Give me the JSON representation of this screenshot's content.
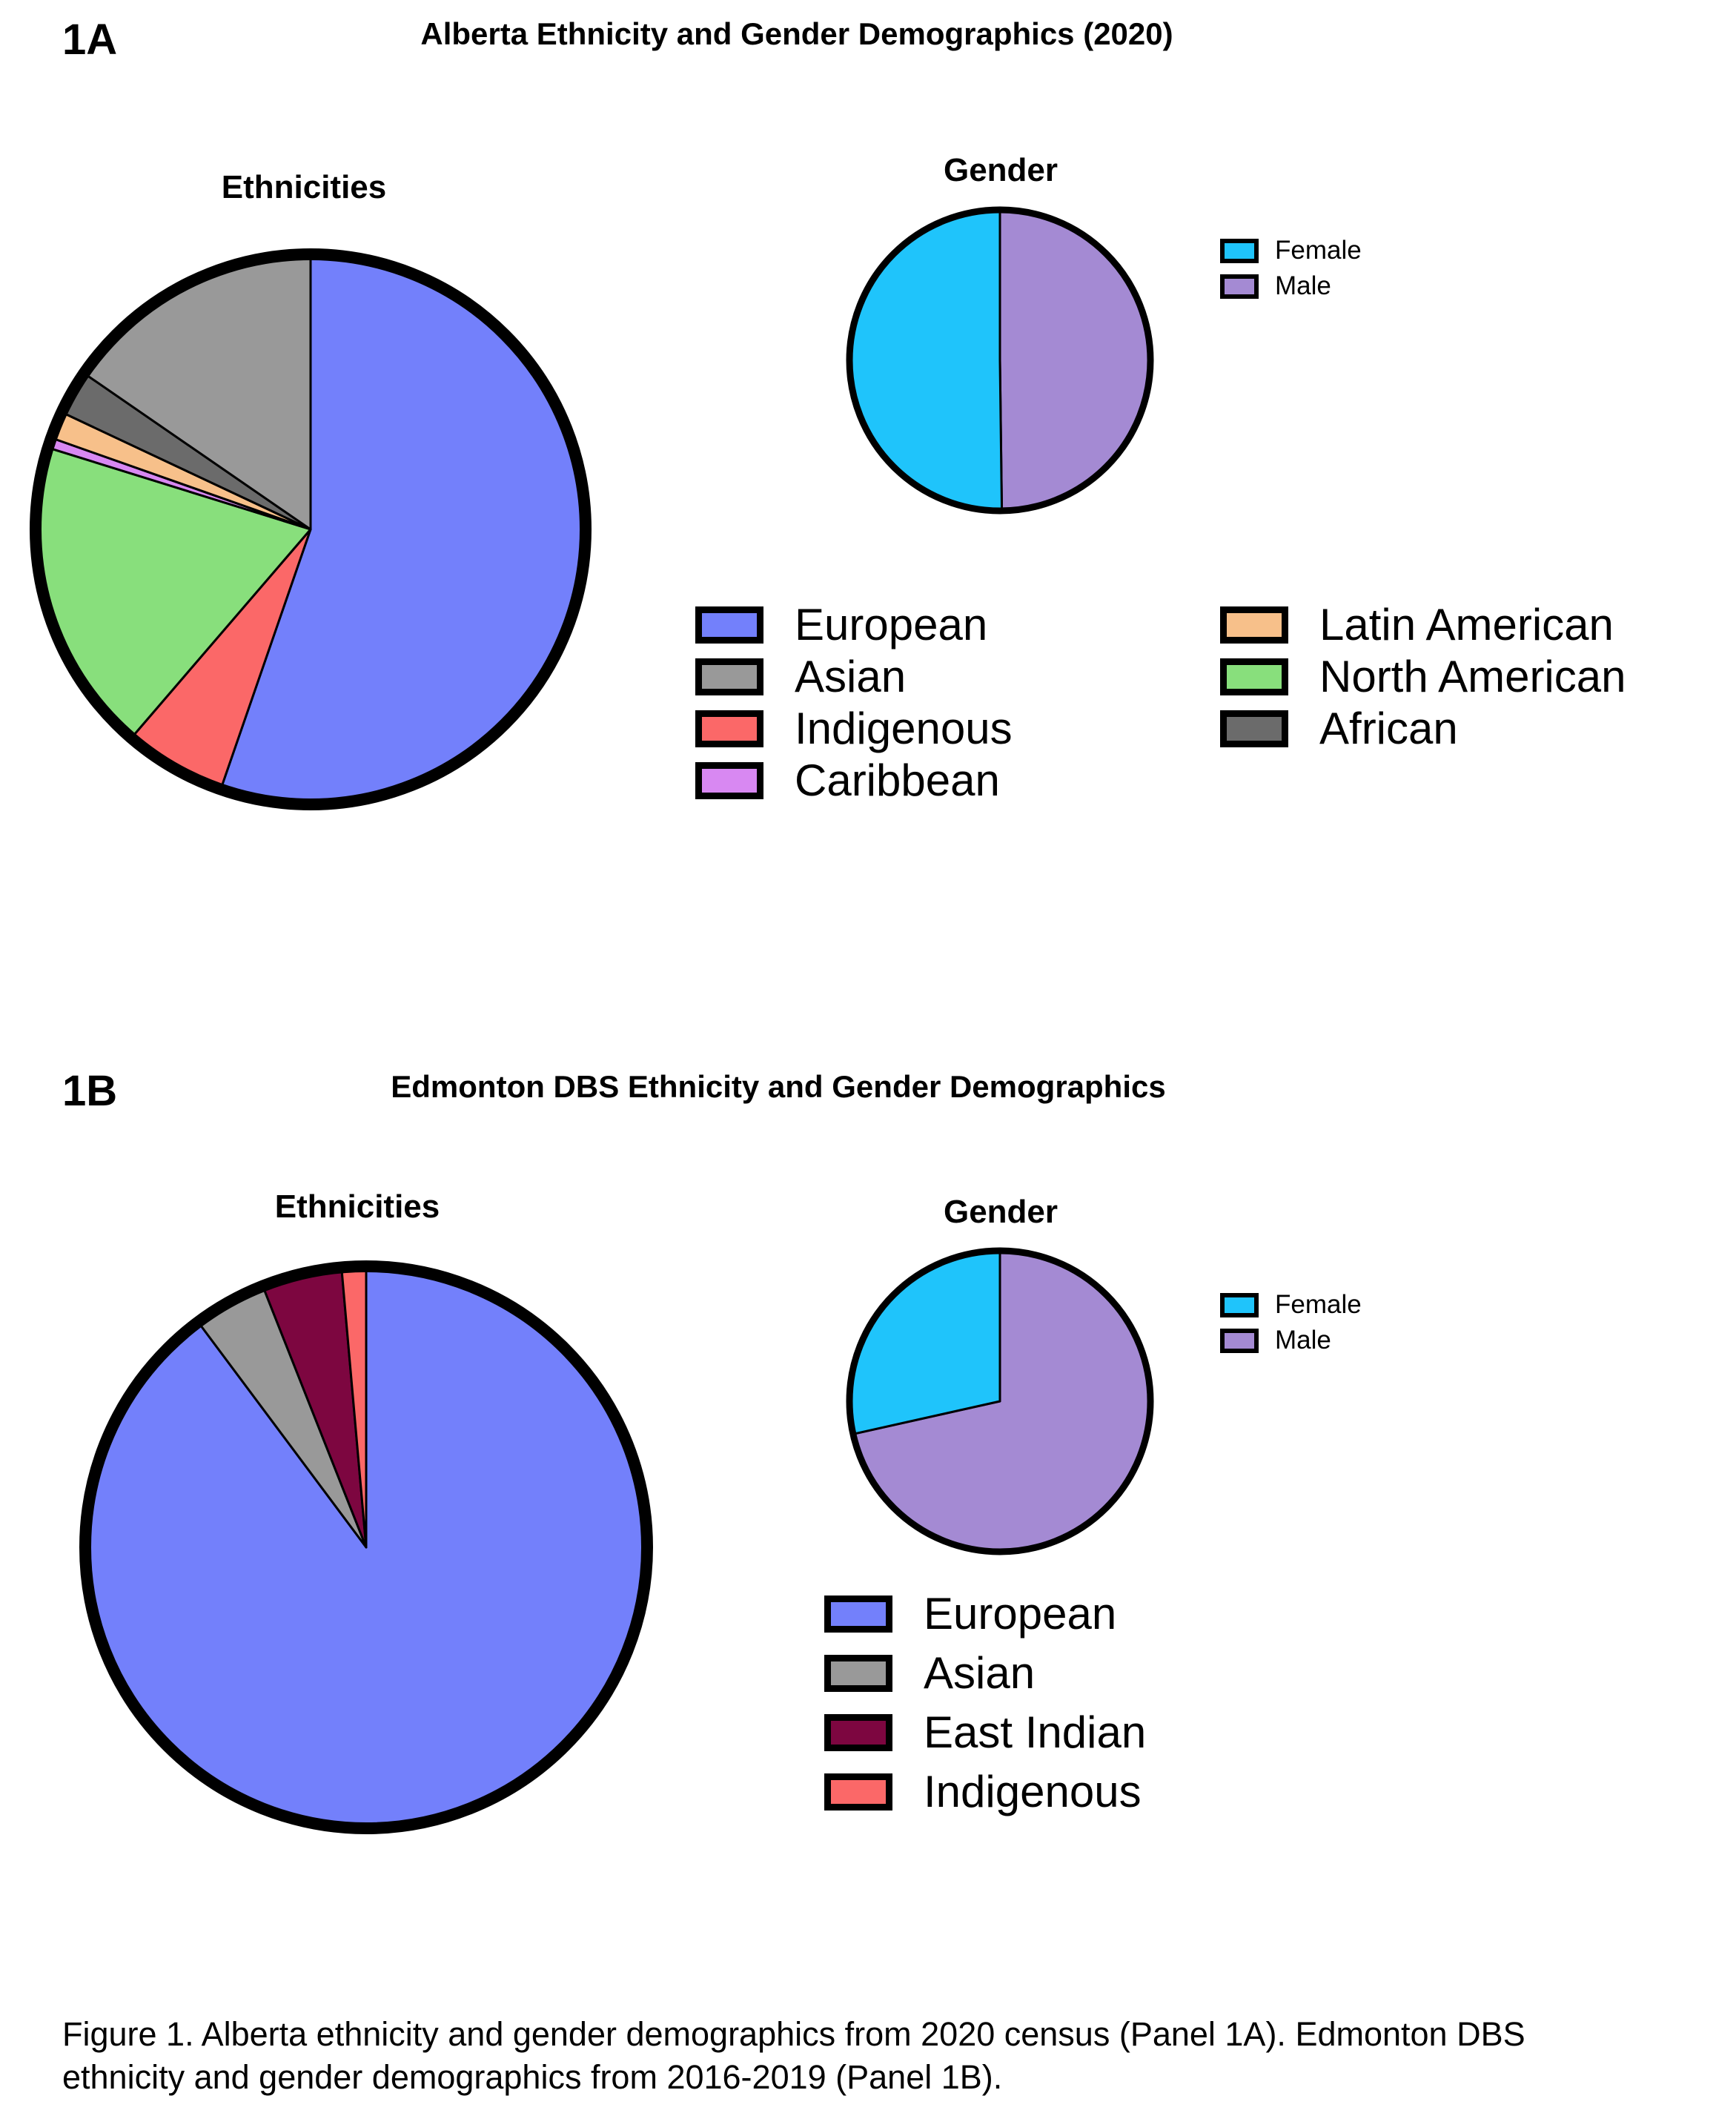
{
  "panel_1a": {
    "label": "1A",
    "title": "Alberta Ethnicity and Gender Demographics (2020)"
  },
  "panel_1b": {
    "label": "1B",
    "title": "Edmonton DBS Ethnicity and Gender Demographics"
  },
  "caption": {
    "line1": "Figure 1. Alberta ethnicity and gender demographics from 2020 census (Panel 1A). Edmonton DBS",
    "line2": "ethnicity and gender demographics from 2016-2019 (Panel 1B)."
  },
  "chart_data": [
    {
      "id": "1a-ethnicities",
      "type": "pie",
      "title": "Ethnicities",
      "start_angle_deg": 0,
      "direction": "clockwise",
      "legend_columns": 2,
      "categories": [
        "European",
        "Asian",
        "Indigenous",
        "Caribbean",
        "Latin American",
        "North American",
        "African"
      ],
      "legend_order": [
        "European",
        "Asian",
        "Indigenous",
        "Caribbean",
        "Latin American",
        "North American",
        "African"
      ],
      "slice_order": [
        "European",
        "Indigenous",
        "North American",
        "Caribbean",
        "Latin American",
        "African",
        "Asian"
      ],
      "values": {
        "European": 55.3,
        "Indigenous": 6.0,
        "North American": 18.5,
        "Caribbean": 0.6,
        "Latin American": 1.6,
        "African": 2.6,
        "Asian": 15.4
      },
      "colors": {
        "European": "#7380fb",
        "Asian": "#999999",
        "Indigenous": "#fb6868",
        "Caribbean": "#d888f2",
        "Latin American": "#f7c08a",
        "North American": "#88df7c",
        "African": "#6b6b6b"
      }
    },
    {
      "id": "1a-gender",
      "type": "pie",
      "title": "Gender",
      "start_angle_deg": 0,
      "direction": "clockwise",
      "categories": [
        "Female",
        "Male"
      ],
      "legend_order": [
        "Female",
        "Male"
      ],
      "slice_order": [
        "Male",
        "Female"
      ],
      "values": {
        "Male": 49.8,
        "Female": 50.2
      },
      "colors": {
        "Female": "#1fc4fb",
        "Male": "#a48ad3"
      }
    },
    {
      "id": "1b-ethnicities",
      "type": "pie",
      "title": "Ethnicities",
      "start_angle_deg": 0,
      "direction": "clockwise",
      "legend_columns": 1,
      "categories": [
        "European",
        "Asian",
        "East Indian",
        "Indigenous"
      ],
      "legend_order": [
        "European",
        "Asian",
        "East Indian",
        "Indigenous"
      ],
      "slice_order": [
        "European",
        "Asian",
        "East Indian",
        "Indigenous"
      ],
      "values": {
        "European": 89.8,
        "Asian": 4.2,
        "East Indian": 4.6,
        "Indigenous": 1.4
      },
      "colors": {
        "European": "#7380fb",
        "Asian": "#999999",
        "East Indian": "#7d0640",
        "Indigenous": "#fb6868"
      }
    },
    {
      "id": "1b-gender",
      "type": "pie",
      "title": "Gender",
      "start_angle_deg": 0,
      "direction": "clockwise",
      "categories": [
        "Female",
        "Male"
      ],
      "legend_order": [
        "Female",
        "Male"
      ],
      "slice_order": [
        "Male",
        "Female"
      ],
      "values": {
        "Male": 71.5,
        "Female": 28.5
      },
      "colors": {
        "Female": "#1fc4fb",
        "Male": "#a48ad3"
      }
    }
  ]
}
